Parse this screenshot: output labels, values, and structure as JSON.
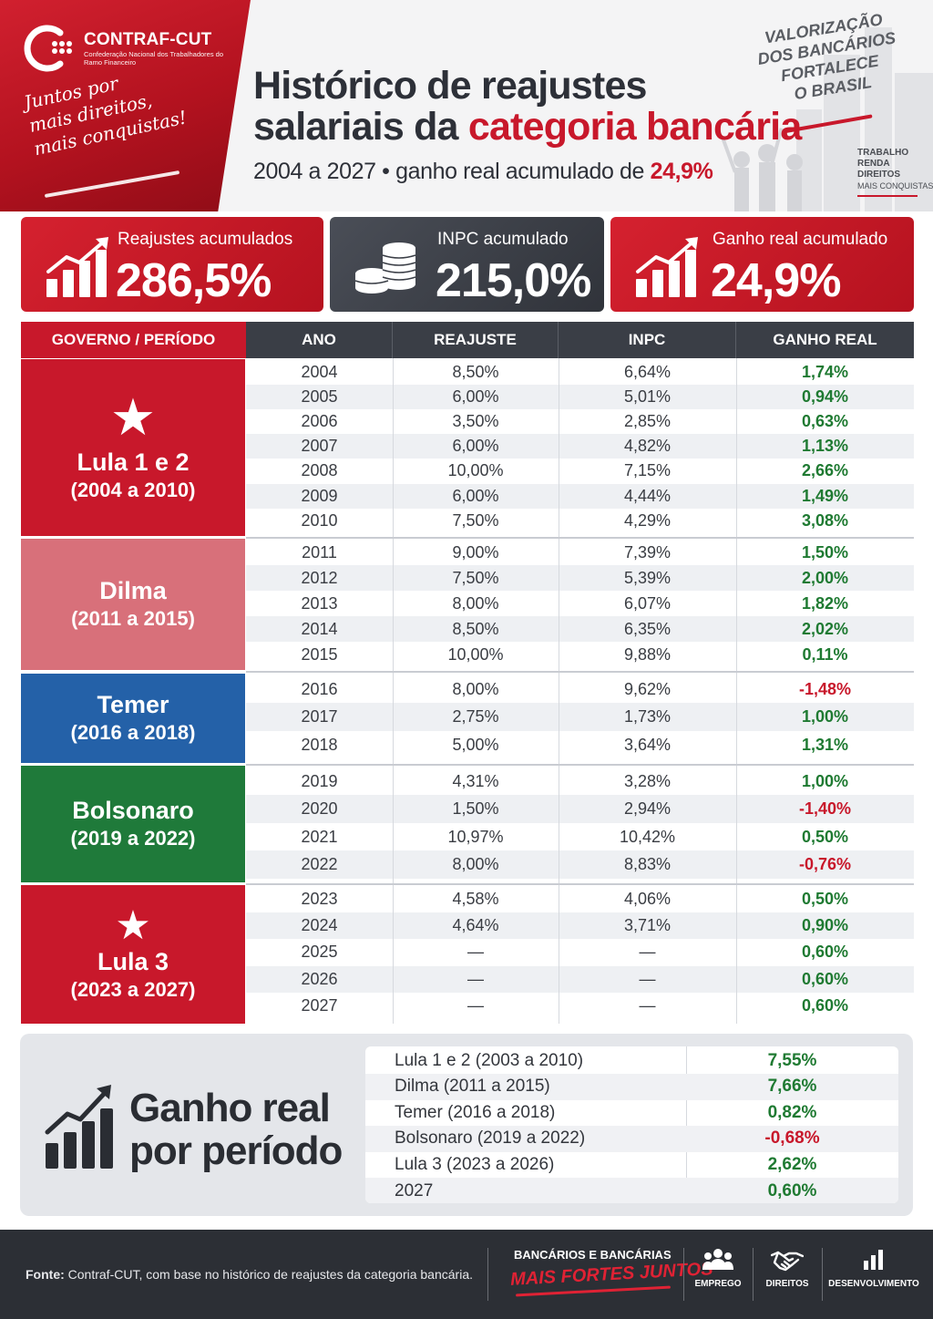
{
  "header": {
    "org_name": "CONTRAF-CUT",
    "org_subtitle": "Confederação Nacional dos Trabalhadores do Ramo Financeiro",
    "slogan": [
      "Juntos por",
      "mais direitos,",
      "mais conquistas!"
    ],
    "title_line1": "Histórico de reajustes",
    "title_line2_plain": "salariais da ",
    "title_line2_accent": "categoria bancária",
    "subtitle_plain": "2004 a 2027 • ganho real acumulado de ",
    "subtitle_accent": "24,9%",
    "valorizacao": [
      "VALORIZAÇÃO",
      "DOS BANCÁRIOS",
      "FORTALECE",
      "O BRASIL"
    ],
    "tags": [
      "TRABALHO",
      "RENDA",
      "DIREITOS",
      "MAIS CONQUISTAS"
    ]
  },
  "cards": [
    {
      "label": "Reajustes acumulados",
      "value": "286,5%"
    },
    {
      "label": "INPC acumulado",
      "value": "215,0%"
    },
    {
      "label": "Ganho real acumulado",
      "value": "24,9%"
    }
  ],
  "table": {
    "headers": [
      "GOVERNO / PERÍODO",
      "ANO",
      "REAJUSTE",
      "INPC",
      "GANHO REAL"
    ],
    "governments": [
      {
        "name": "Lula 1 e 2",
        "period": "(2004 a 2010)",
        "color": "#c8182b"
      },
      {
        "name": "Dilma",
        "period": "(2011 a 2015)",
        "color": "#d8707a"
      },
      {
        "name": "Temer",
        "period": "(2016 a 2018)",
        "color": "#2461a8"
      },
      {
        "name": "Bolsonaro",
        "period": "(2019 a 2022)",
        "color": "#1f7a3a"
      },
      {
        "name": "Lula 3",
        "period": "(2023 a 2027)",
        "color": "#c8182b"
      }
    ],
    "rows": [
      {
        "ano": "2004",
        "reajuste": "8,50%",
        "inpc": "6,64%",
        "ganho": "1,74%"
      },
      {
        "ano": "2005",
        "reajuste": "6,00%",
        "inpc": "5,01%",
        "ganho": "0,94%"
      },
      {
        "ano": "2006",
        "reajuste": "3,50%",
        "inpc": "2,85%",
        "ganho": "0,63%"
      },
      {
        "ano": "2007",
        "reajuste": "6,00%",
        "inpc": "4,82%",
        "ganho": "1,13%"
      },
      {
        "ano": "2008",
        "reajuste": "10,00%",
        "inpc": "7,15%",
        "ganho": "2,66%"
      },
      {
        "ano": "2009",
        "reajuste": "6,00%",
        "inpc": "4,44%",
        "ganho": "1,49%"
      },
      {
        "ano": "2010",
        "reajuste": "7,50%",
        "inpc": "4,29%",
        "ganho": "3,08%"
      },
      {
        "ano": "2011",
        "reajuste": "9,00%",
        "inpc": "7,39%",
        "ganho": "1,50%"
      },
      {
        "ano": "2012",
        "reajuste": "7,50%",
        "inpc": "5,39%",
        "ganho": "2,00%"
      },
      {
        "ano": "2013",
        "reajuste": "8,00%",
        "inpc": "6,07%",
        "ganho": "1,82%"
      },
      {
        "ano": "2014",
        "reajuste": "8,50%",
        "inpc": "6,35%",
        "ganho": "2,02%"
      },
      {
        "ano": "2015",
        "reajuste": "10,00%",
        "inpc": "9,88%",
        "ganho": "0,11%"
      },
      {
        "ano": "2016",
        "reajuste": "8,00%",
        "inpc": "9,62%",
        "ganho": "-1,48%"
      },
      {
        "ano": "2017",
        "reajuste": "2,75%",
        "inpc": "1,73%",
        "ganho": "1,00%"
      },
      {
        "ano": "2018",
        "reajuste": "5,00%",
        "inpc": "3,64%",
        "ganho": "1,31%"
      },
      {
        "ano": "2019",
        "reajuste": "4,31%",
        "inpc": "3,28%",
        "ganho": "1,00%"
      },
      {
        "ano": "2020",
        "reajuste": "1,50%",
        "inpc": "2,94%",
        "ganho": "-1,40%"
      },
      {
        "ano": "2021",
        "reajuste": "10,97%",
        "inpc": "10,42%",
        "ganho": "0,50%"
      },
      {
        "ano": "2022",
        "reajuste": "8,00%",
        "inpc": "8,83%",
        "ganho": "-0,76%"
      },
      {
        "ano": "2023",
        "reajuste": "4,58%",
        "inpc": "4,06%",
        "ganho": "0,50%"
      },
      {
        "ano": "2024",
        "reajuste": "4,64%",
        "inpc": "3,71%",
        "ganho": "0,90%"
      },
      {
        "ano": "2025",
        "reajuste": "—",
        "inpc": "—",
        "ganho": "0,60%"
      },
      {
        "ano": "2026",
        "reajuste": "—",
        "inpc": "—",
        "ganho": "0,60%"
      },
      {
        "ano": "2027",
        "reajuste": "—",
        "inpc": "—",
        "ganho": "0,60%"
      }
    ]
  },
  "period_summary": {
    "title_line1": "Ganho real",
    "title_line2": "por período",
    "rows": [
      {
        "label": "Lula 1 e 2 (2003 a 2010)",
        "value": "7,55%"
      },
      {
        "label": "Dilma (2011 a 2015)",
        "value": "7,66%"
      },
      {
        "label": "Temer (2016 a 2018)",
        "value": "0,82%"
      },
      {
        "label": "Bolsonaro (2019 a 2022)",
        "value": "-0,68%"
      },
      {
        "label": "Lula 3 (2023 a 2026)",
        "value": "2,62%"
      },
      {
        "label": "2027",
        "value": "0,60%"
      }
    ]
  },
  "footer": {
    "source_label": "Fonte:",
    "source_text": "Contraf-CUT, com base no histórico de reajustes da categoria bancária.",
    "campaign_top": "BANCÁRIOS E BANCÁRIAS",
    "campaign_bottom": "MAIS FORTES JUNTOS",
    "icons": [
      {
        "icon": "people-icon",
        "label": "EMPREGO"
      },
      {
        "icon": "handshake-icon",
        "label": "DIREITOS"
      },
      {
        "icon": "bar-chart-icon",
        "label": "DESENVOLVIMENTO"
      }
    ]
  },
  "colors": {
    "brand_red": "#c8182b",
    "positive_green": "#1f7a32",
    "dark": "#2c2f35"
  }
}
